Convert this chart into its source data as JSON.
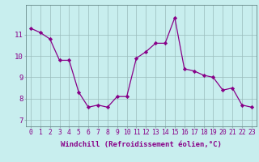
{
  "x": [
    0,
    1,
    2,
    3,
    4,
    5,
    6,
    7,
    8,
    9,
    10,
    11,
    12,
    13,
    14,
    15,
    16,
    17,
    18,
    19,
    20,
    21,
    22,
    23
  ],
  "y": [
    11.3,
    11.1,
    10.8,
    9.8,
    9.8,
    8.3,
    7.6,
    7.7,
    7.6,
    8.1,
    8.1,
    9.9,
    10.2,
    10.6,
    10.6,
    11.8,
    9.4,
    9.3,
    9.1,
    9.0,
    8.4,
    8.5,
    7.7,
    7.6
  ],
  "line_color": "#880088",
  "marker": "D",
  "marker_size": 2.2,
  "bg_color": "#c8eeee",
  "grid_color": "#99bbbb",
  "xlabel": "Windchill (Refroidissement éolien,°C)",
  "xlabel_color": "#880088",
  "ylabel_ticks": [
    7,
    8,
    9,
    10,
    11
  ],
  "xtick_labels": [
    "0",
    "1",
    "2",
    "3",
    "4",
    "5",
    "6",
    "7",
    "8",
    "9",
    "10",
    "11",
    "12",
    "13",
    "14",
    "15",
    "16",
    "17",
    "18",
    "19",
    "20",
    "21",
    "22",
    "23"
  ],
  "ylim": [
    6.7,
    12.4
  ],
  "xlim": [
    -0.5,
    23.5
  ],
  "tick_color": "#880088",
  "label_fontsize": 6.5,
  "tick_fontsize": 5.8,
  "ytick_fontsize": 6.5,
  "linewidth": 0.9
}
